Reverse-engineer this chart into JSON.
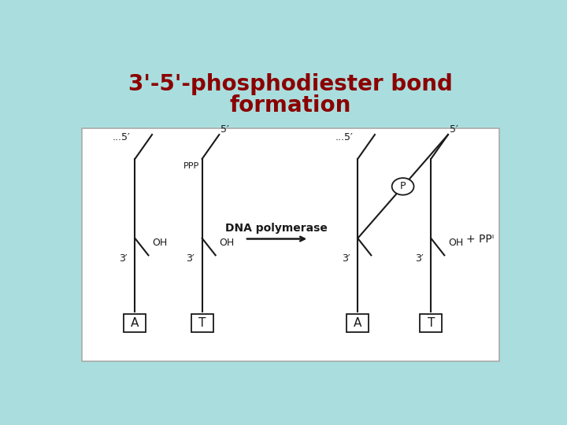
{
  "title_line1": "3'-5'-phosphodiester bond",
  "title_line2": "formation",
  "title_color": "#8B0000",
  "title_fontsize": 20,
  "bg_color": "#aadede",
  "strand_color": "#1a1a1a",
  "enzyme_text": "DNA polymerase",
  "enzyme_fontsize": 10,
  "label_fontsize": 9,
  "small_fontsize": 8,
  "base_fontsize": 11,
  "ppi_fontsize": 10
}
